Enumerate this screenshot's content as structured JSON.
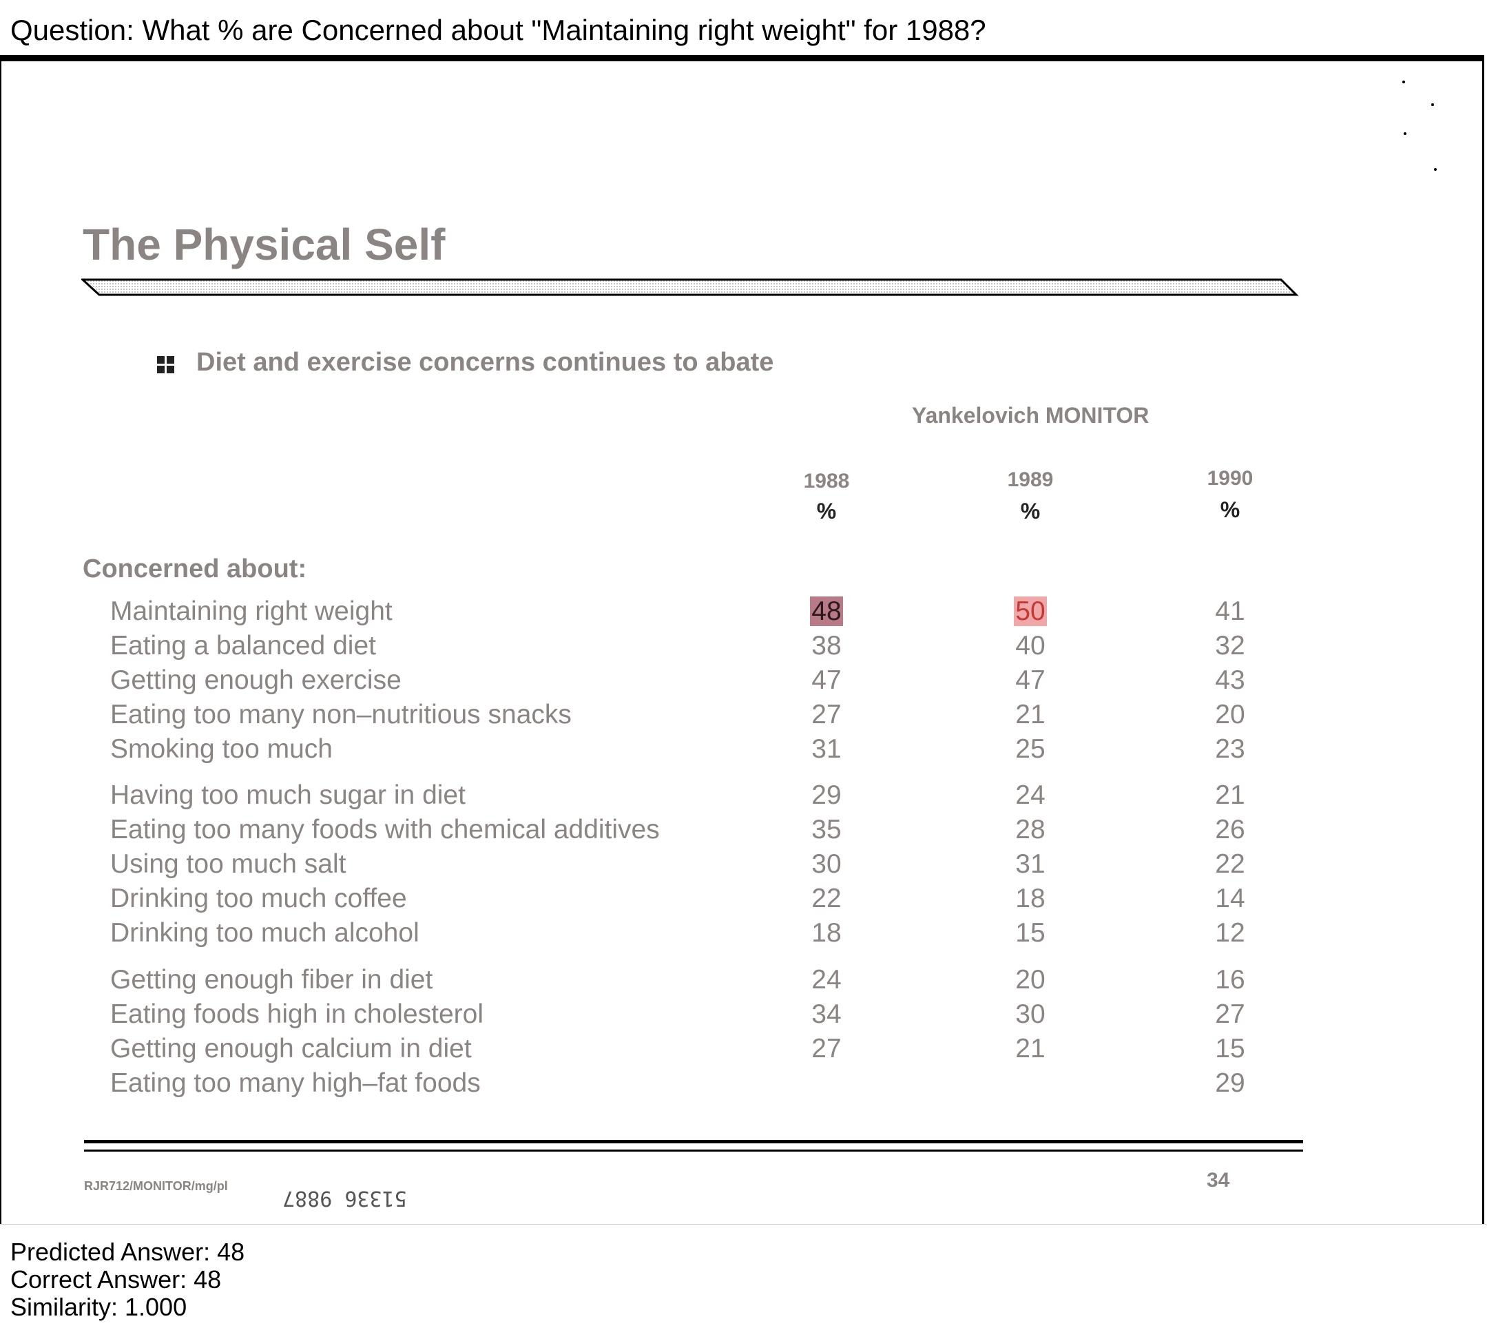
{
  "question": "Question: What % are Concerned about \"Maintaining right weight\" for 1988?",
  "document": {
    "title": "The Physical Self",
    "subtitle": "Diet and exercise concerns continues to abate",
    "source": "Yankelovich MONITOR",
    "years": [
      "1988",
      "1989",
      "1990"
    ],
    "unit": "%",
    "section_label": "Concerned about:",
    "rows": [
      {
        "label": "Maintaining right weight",
        "values": [
          "48",
          "50",
          "41"
        ]
      },
      {
        "label": "Eating a balanced diet",
        "values": [
          "38",
          "40",
          "32"
        ]
      },
      {
        "label": "Getting enough exercise",
        "values": [
          "47",
          "47",
          "43"
        ]
      },
      {
        "label": "Eating too many non–nutritious snacks",
        "values": [
          "27",
          "21",
          "20"
        ]
      },
      {
        "label": "Smoking too much",
        "values": [
          "31",
          "25",
          "23"
        ]
      },
      {
        "label": "Having too much sugar in diet",
        "values": [
          "29",
          "24",
          "21"
        ]
      },
      {
        "label": "Eating too many foods with chemical additives",
        "values": [
          "35",
          "28",
          "26"
        ]
      },
      {
        "label": "Using too much salt",
        "values": [
          "30",
          "31",
          "22"
        ]
      },
      {
        "label": "Drinking too much coffee",
        "values": [
          "22",
          "18",
          "14"
        ]
      },
      {
        "label": "Drinking too much alcohol",
        "values": [
          "18",
          "15",
          "12"
        ]
      },
      {
        "label": "Getting enough fiber in diet",
        "values": [
          "24",
          "20",
          "16"
        ]
      },
      {
        "label": "Eating foods high in cholesterol",
        "values": [
          "34",
          "30",
          "27"
        ]
      },
      {
        "label": "Getting enough calcium in diet",
        "values": [
          "27",
          "21",
          "15"
        ]
      },
      {
        "label": "Eating too many high–fat foods",
        "values": [
          "",
          "",
          "29"
        ]
      }
    ],
    "doc_id": "RJR712/MONITOR/mg/pl",
    "stamp": "51336 9887",
    "page_number": "34"
  },
  "result": {
    "predicted": "Predicted Answer: 48",
    "correct": "Correct Answer: 48",
    "similarity": "Similarity: 1.000"
  },
  "colors": {
    "text_gray": "#8a8583",
    "highlight_strong": "#b87a86",
    "highlight_medium": "#f0a7a7"
  }
}
